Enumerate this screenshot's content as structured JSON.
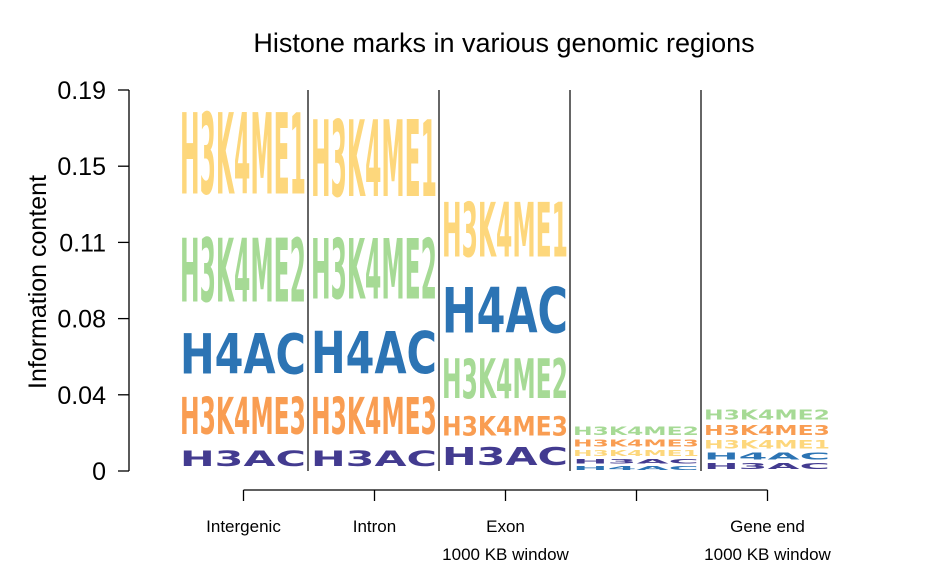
{
  "chart_data": {
    "type": "bar",
    "title": "Histone marks in various genomic regions",
    "ylabel": "Information content",
    "xlabel": "",
    "ylim": [
      0,
      0.19
    ],
    "yticks": [
      {
        "value": 0,
        "label": "0"
      },
      {
        "value": 0.038,
        "label": "0.04"
      },
      {
        "value": 0.076,
        "label": "0.08"
      },
      {
        "value": 0.114,
        "label": "0.11"
      },
      {
        "value": 0.152,
        "label": "0.15"
      },
      {
        "value": 0.19,
        "label": "0.19"
      }
    ],
    "categories": [
      {
        "name": "Intergenic",
        "label_lines": [
          "Intergenic"
        ]
      },
      {
        "name": "Intron",
        "label_lines": [
          "Intron"
        ]
      },
      {
        "name": "Exon",
        "label_lines": [
          "Exon",
          "1000 KB window"
        ]
      },
      {
        "name": "1000 KB window",
        "label_lines": []
      },
      {
        "name": "Gene end",
        "label_lines": [
          "Gene end",
          "1000 KB window"
        ]
      }
    ],
    "colors": {
      "H3K4ME1": "#fdd77c",
      "H3K4ME2": "#a6da95",
      "H4AC": "#2c74b4",
      "H3K4ME3": "#f99d52",
      "H3AC": "#433b90"
    },
    "stacks": [
      [
        {
          "mark": "H3AC",
          "text": "H3AC",
          "value": 0.0125
        },
        {
          "mark": "H3K4ME3",
          "text": "H3K4ME3",
          "value": 0.0295
        },
        {
          "mark": "H4AC",
          "text": "H4AC",
          "value": 0.032
        },
        {
          "mark": "H3K4ME2",
          "text": "H3K4ME2",
          "value": 0.051
        },
        {
          "mark": "H3K4ME1",
          "text": "H3K4ME1",
          "value": 0.065
        }
      ],
      [
        {
          "mark": "H3AC",
          "text": "H3AC",
          "value": 0.0125
        },
        {
          "mark": "H3K4ME3",
          "text": "H3K4ME3",
          "value": 0.0295
        },
        {
          "mark": "H4AC",
          "text": "H4AC",
          "value": 0.034
        },
        {
          "mark": "H3K4ME2",
          "text": "H3K4ME2",
          "value": 0.0485
        },
        {
          "mark": "H3K4ME1",
          "text": "H3K4ME1",
          "value": 0.0615
        }
      ],
      [
        {
          "mark": "H3AC",
          "text": "H3AC",
          "value": 0.0145
        },
        {
          "mark": "H3K4ME3",
          "text": "H3K4ME3",
          "value": 0.0155
        },
        {
          "mark": "H3K4ME2",
          "text": "H3K4ME2",
          "value": 0.0315
        },
        {
          "mark": "H4AC",
          "text": "H4AC",
          "value": 0.0365
        },
        {
          "mark": "H3K4ME1",
          "text": "H3K4ME1",
          "value": 0.0435
        }
      ],
      [
        {
          "mark": "H4AC",
          "text": "H4AC",
          "value": 0.003
        },
        {
          "mark": "H3AC",
          "text": "H3AC",
          "value": 0.0035
        },
        {
          "mark": "H3K4ME1",
          "text": "H3K4ME1",
          "value": 0.0045
        },
        {
          "mark": "H3K4ME3",
          "text": "H3K4ME3",
          "value": 0.0055
        },
        {
          "mark": "H3K4ME2",
          "text": "H3K4ME2",
          "value": 0.0065
        }
      ],
      [
        {
          "mark": "H3AC",
          "text": "H3AC",
          "value": 0.0045
        },
        {
          "mark": "H4AC",
          "text": "H4AC",
          "value": 0.0055
        },
        {
          "mark": "H3K4ME1",
          "text": "H3K4ME1",
          "value": 0.0065
        },
        {
          "mark": "H3K4ME3",
          "text": "H3K4ME3",
          "value": 0.0075
        },
        {
          "mark": "H3K4ME2",
          "text": "H3K4ME2",
          "value": 0.008
        }
      ]
    ]
  }
}
